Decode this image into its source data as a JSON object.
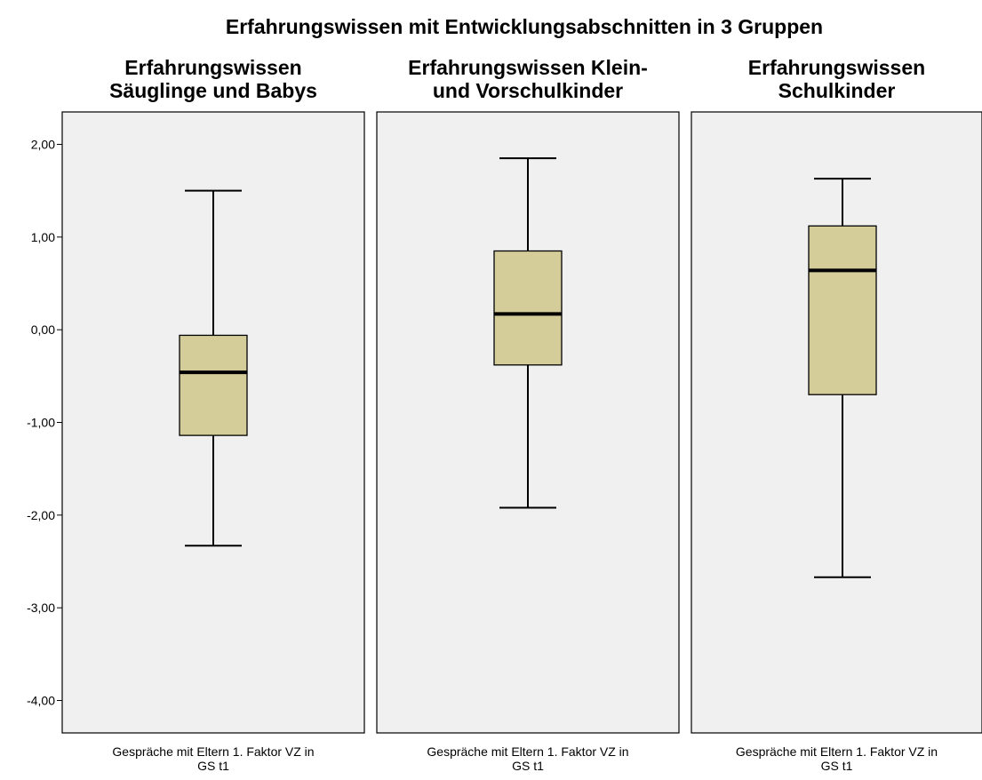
{
  "chart_data": {
    "type": "boxplot",
    "title": "Erfahrungswissen mit Entwicklungsabschnitten in 3 Gruppen",
    "ylabel": "",
    "ylim": [
      -4.35,
      2.35
    ],
    "yticks": [
      2,
      1,
      0,
      -1,
      -2,
      -3,
      -4
    ],
    "ytick_labels": [
      "2,00",
      "1,00",
      "0,00",
      "-1,00",
      "-2,00",
      "-3,00",
      "-4,00"
    ],
    "category_label_lines": [
      "Gespräche mit Eltern 1. Faktor VZ in",
      "GS t1"
    ],
    "box_color": "#d4cc99",
    "panel_background": "#f0f0f0",
    "panels": [
      {
        "title_lines": [
          "Erfahrungswissen",
          "Säuglinge und Babys"
        ],
        "whisker_low": -2.33,
        "q1": -1.14,
        "median": -0.46,
        "q3": -0.06,
        "whisker_high": 1.5
      },
      {
        "title_lines": [
          "Erfahrungswissen Klein-",
          "und Vorschulkinder"
        ],
        "whisker_low": -1.92,
        "q1": -0.38,
        "median": 0.17,
        "q3": 0.85,
        "whisker_high": 1.85
      },
      {
        "title_lines": [
          "Erfahrungswissen",
          "Schulkinder"
        ],
        "whisker_low": -2.67,
        "q1": -0.7,
        "median": 0.64,
        "q3": 1.12,
        "whisker_high": 1.63
      }
    ]
  }
}
